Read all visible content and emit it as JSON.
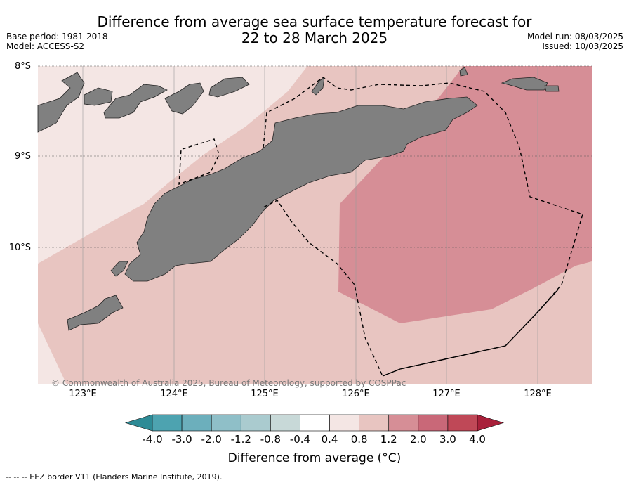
{
  "title_line1": "Difference from average sea surface temperature forecast for",
  "title_line2": "22 to 28 March 2025",
  "base_period": "Base period: 1981-2018",
  "model": "Model: ACCESS-S2",
  "model_run": "Model run: 08/03/2025",
  "issued": "Issued: 10/03/2025",
  "lat_labels": [
    "8°S",
    "9°S",
    "10°S"
  ],
  "lon_labels": [
    "123°E",
    "124°E",
    "125°E",
    "126°E",
    "127°E",
    "128°E"
  ],
  "copyright": "© Commonwealth of Australia 2025, Bureau of Meteorology, supported by COSPPac",
  "colorbar": {
    "ticks": [
      "-4.0",
      "-3.0",
      "-2.0",
      "-1.2",
      "-0.8",
      "-0.4",
      "0.4",
      "0.8",
      "1.2",
      "2.0",
      "3.0",
      "4.0"
    ],
    "colors": [
      "#2e8b96",
      "#4da3b0",
      "#6cafbc",
      "#8fbfc8",
      "#aacbcf",
      "#c8d9d8",
      "#ffffff",
      "#f4e6e4",
      "#e8c5c1",
      "#d68e96",
      "#c96878",
      "#bf4857",
      "#a8203a"
    ],
    "label": "Difference from average (°C)"
  },
  "footer": "-- -- -- EEZ border V11 (Flanders Marine Institute, 2019).",
  "map_colors": {
    "land": "#808080",
    "anom_0_4_to_0_8": "#f4e6e4",
    "anom_0_8_to_1_2": "#e8c5c1",
    "anom_1_2_to_2_0": "#d68e96"
  }
}
